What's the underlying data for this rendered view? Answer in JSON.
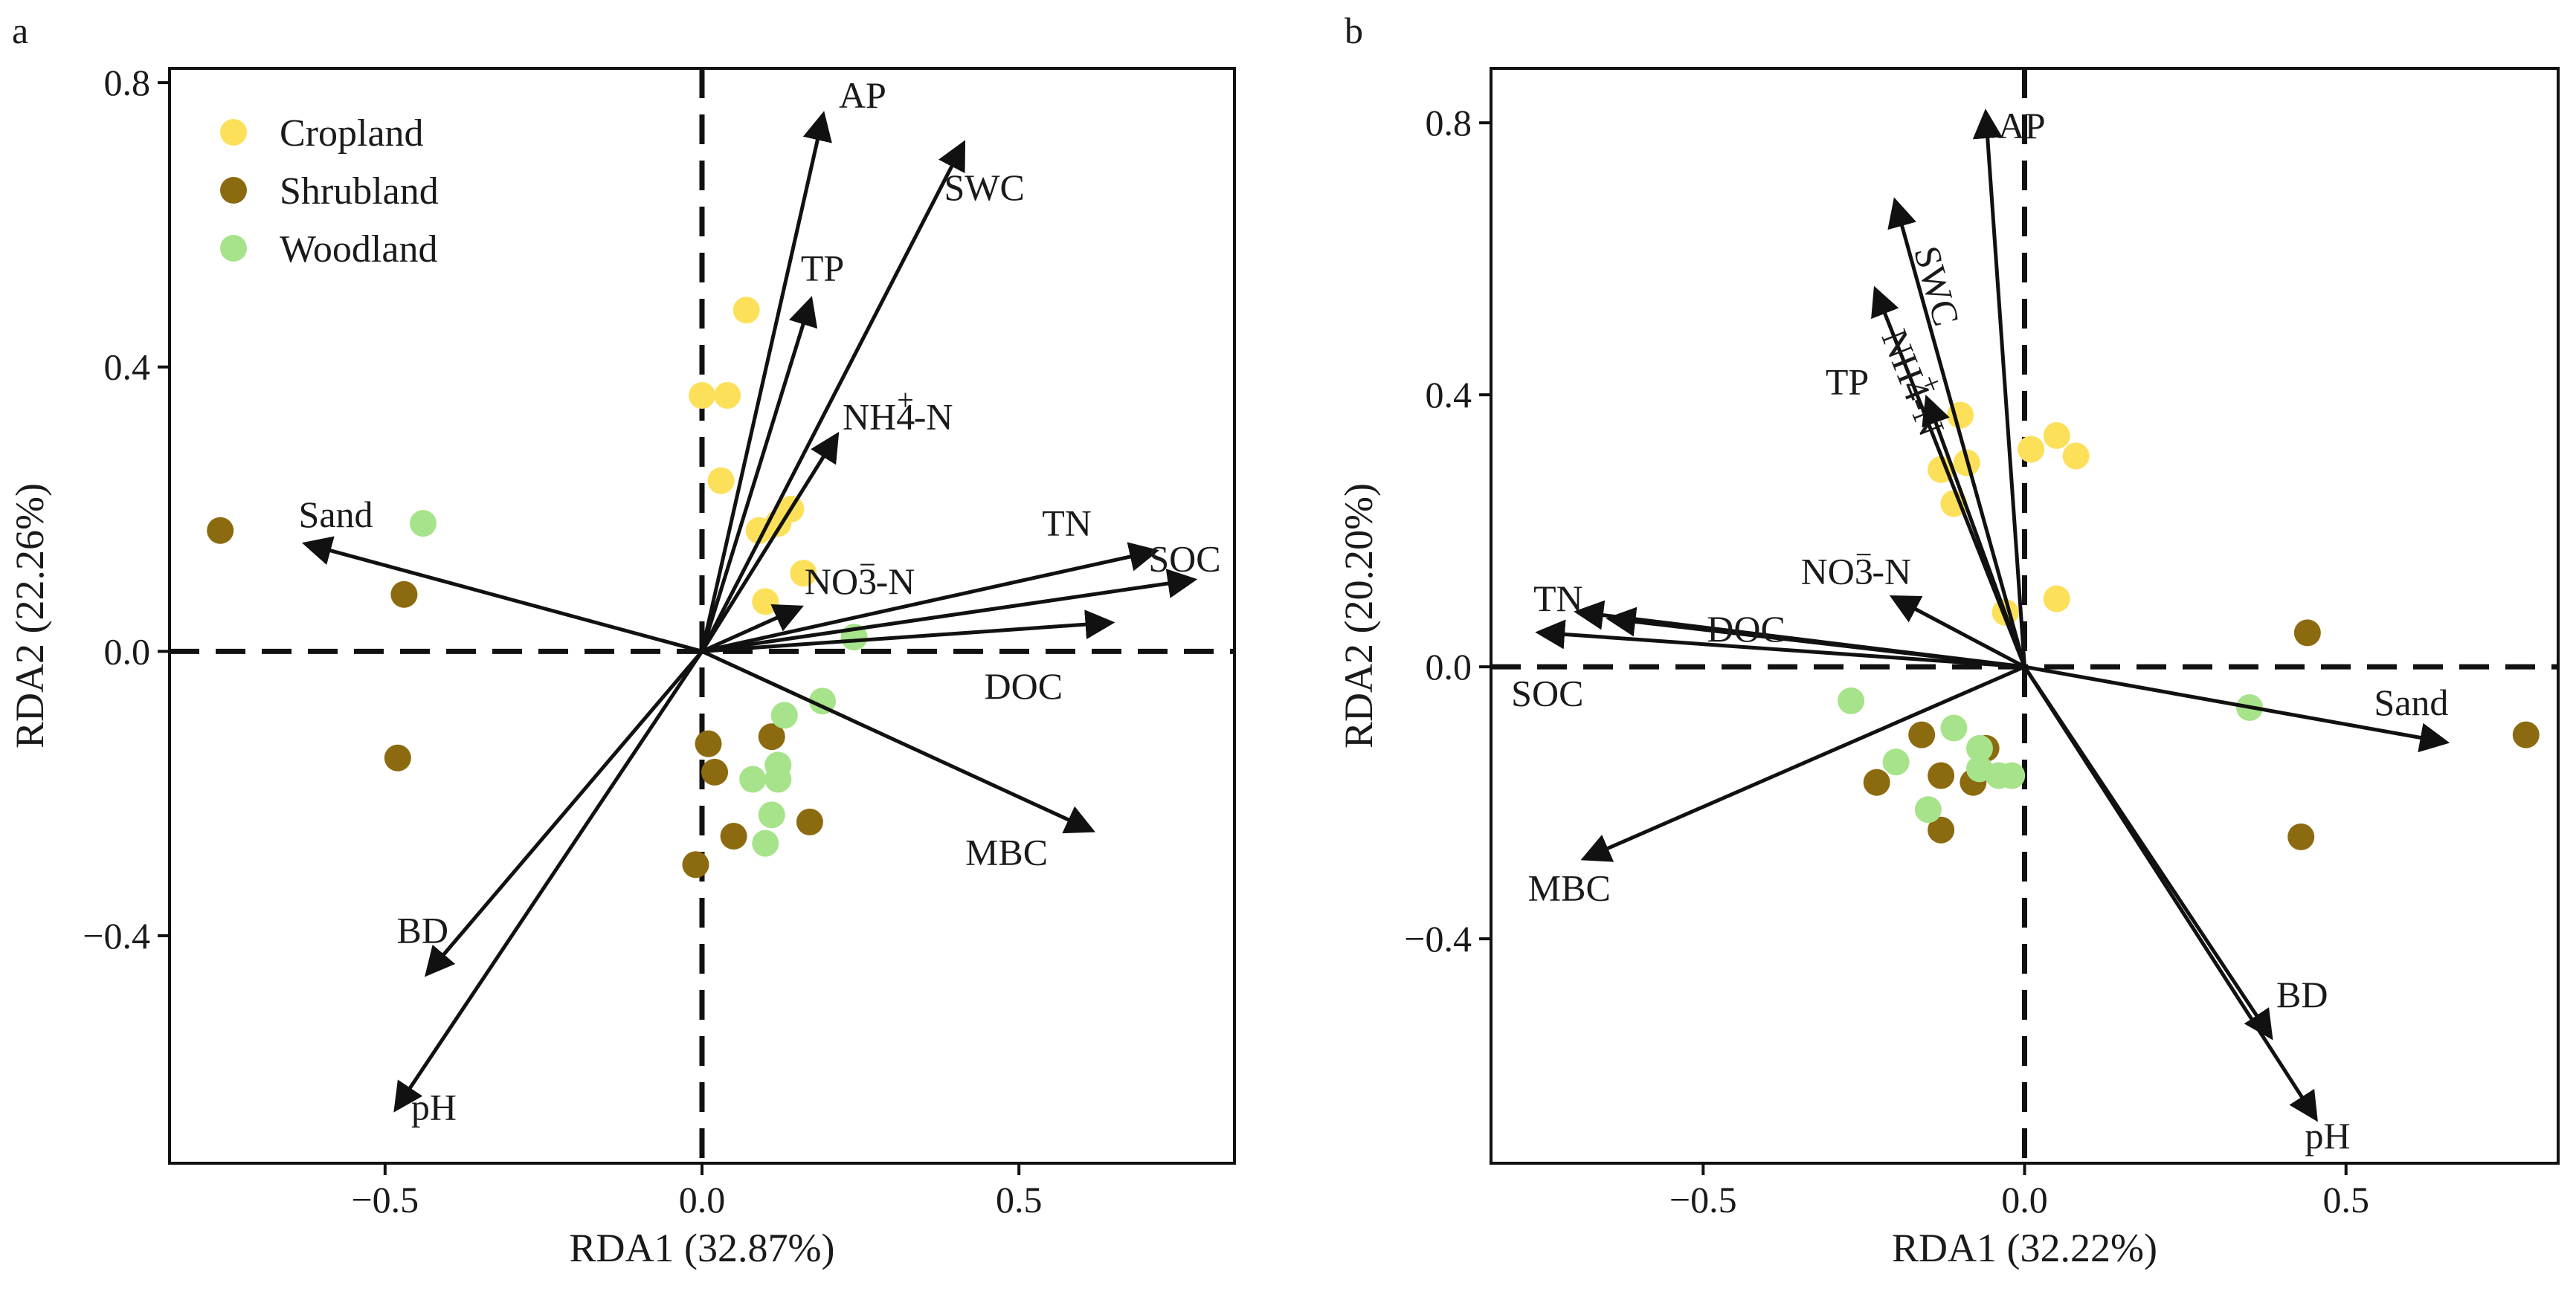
{
  "figure": {
    "legend": [
      {
        "name": "Cropland",
        "color": "#fde05a"
      },
      {
        "name": "Shrubland",
        "color": "#8c6a0f"
      },
      {
        "name": "Woodland",
        "color": "#a6e38a"
      }
    ]
  },
  "chart_data": [
    {
      "type": "scatter",
      "panel_label": "a",
      "xlabel": "RDA1 (32.87%)",
      "ylabel": "RDA2 (22.26%)",
      "xlim": [
        -0.84,
        0.84
      ],
      "ylim": [
        -0.72,
        0.82
      ],
      "xticks": [
        -0.5,
        0.0,
        0.5
      ],
      "xtick_labels": [
        "−0.5",
        "0.0",
        "0.5"
      ],
      "yticks": [
        -0.4,
        0.0,
        0.4,
        0.8
      ],
      "ytick_labels": [
        "−0.4",
        "0.0",
        "0.4",
        "0.8"
      ],
      "legend_position": "top-left",
      "vectors": [
        {
          "name": "AP",
          "x": 0.19,
          "y": 0.75
        },
        {
          "name": "SWC",
          "x": 0.41,
          "y": 0.71
        },
        {
          "name": "TP",
          "x": 0.17,
          "y": 0.49
        },
        {
          "name": "NH4+-N",
          "x": 0.21,
          "y": 0.3
        },
        {
          "name": "NO3−-N",
          "x": 0.15,
          "y": 0.06
        },
        {
          "name": "TN",
          "x": 0.71,
          "y": 0.14
        },
        {
          "name": "SOC",
          "x": 0.77,
          "y": 0.1
        },
        {
          "name": "DOC",
          "x": 0.64,
          "y": 0.04
        },
        {
          "name": "MBC",
          "x": 0.61,
          "y": -0.25
        },
        {
          "name": "Sand",
          "x": -0.62,
          "y": 0.15
        },
        {
          "name": "BD",
          "x": -0.43,
          "y": -0.45
        },
        {
          "name": "pH",
          "x": -0.48,
          "y": -0.64
        }
      ],
      "series": [
        {
          "name": "Cropland",
          "points": [
            [
              0.07,
              0.48
            ],
            [
              0.0,
              0.36
            ],
            [
              0.04,
              0.36
            ],
            [
              0.03,
              0.24
            ],
            [
              0.14,
              0.2
            ],
            [
              0.09,
              0.17
            ],
            [
              0.12,
              0.18
            ],
            [
              0.16,
              0.11
            ],
            [
              0.1,
              0.07
            ]
          ]
        },
        {
          "name": "Shrubland",
          "points": [
            [
              -0.76,
              0.17
            ],
            [
              -0.47,
              0.08
            ],
            [
              -0.48,
              -0.15
            ],
            [
              0.01,
              -0.13
            ],
            [
              0.02,
              -0.17
            ],
            [
              0.11,
              -0.12
            ],
            [
              0.05,
              -0.26
            ],
            [
              0.17,
              -0.24
            ],
            [
              -0.01,
              -0.3
            ]
          ]
        },
        {
          "name": "Woodland",
          "points": [
            [
              -0.44,
              0.18
            ],
            [
              0.24,
              0.02
            ],
            [
              0.19,
              -0.07
            ],
            [
              0.13,
              -0.09
            ],
            [
              0.08,
              -0.18
            ],
            [
              0.12,
              -0.18
            ],
            [
              0.12,
              -0.16
            ],
            [
              0.11,
              -0.23
            ],
            [
              0.1,
              -0.27
            ]
          ]
        }
      ]
    },
    {
      "type": "scatter",
      "panel_label": "b",
      "xlabel": "RDA1 (32.22%)",
      "ylabel": "RDA2 (20.20%)",
      "xlim": [
        -0.83,
        0.83
      ],
      "ylim": [
        -0.73,
        0.88
      ],
      "xticks": [
        -0.5,
        0.0,
        0.5
      ],
      "xtick_labels": [
        "−0.5",
        "0.0",
        "0.5"
      ],
      "yticks": [
        -0.4,
        0.0,
        0.4,
        0.8
      ],
      "ytick_labels": [
        "−0.4",
        "0.0",
        "0.4",
        "0.8"
      ],
      "vectors": [
        {
          "name": "AP",
          "x": -0.06,
          "y": 0.81
        },
        {
          "name": "SWC",
          "x": -0.2,
          "y": 0.68
        },
        {
          "name": "NH4+-N",
          "x": -0.23,
          "y": 0.55
        },
        {
          "name": "TP",
          "x": -0.15,
          "y": 0.39
        },
        {
          "name": "NO3−-N",
          "x": -0.2,
          "y": 0.1
        },
        {
          "name": "TN",
          "x": -0.69,
          "y": 0.08
        },
        {
          "name": "DOC",
          "x": -0.64,
          "y": 0.07
        },
        {
          "name": "SOC",
          "x": -0.75,
          "y": 0.05
        },
        {
          "name": "MBC",
          "x": -0.68,
          "y": -0.28
        },
        {
          "name": "Sand",
          "x": 0.65,
          "y": -0.11
        },
        {
          "name": "BD",
          "x": 0.38,
          "y": -0.54
        },
        {
          "name": "pH",
          "x": 0.45,
          "y": -0.66
        }
      ],
      "series": [
        {
          "name": "Cropland",
          "points": [
            [
              0.05,
              0.34
            ],
            [
              0.08,
              0.31
            ],
            [
              0.01,
              0.32
            ],
            [
              -0.1,
              0.37
            ],
            [
              -0.13,
              0.29
            ],
            [
              -0.09,
              0.3
            ],
            [
              -0.11,
              0.24
            ],
            [
              -0.03,
              0.08
            ],
            [
              0.05,
              0.1
            ]
          ]
        },
        {
          "name": "Shrubland",
          "points": [
            [
              0.44,
              0.05
            ],
            [
              0.78,
              -0.1
            ],
            [
              0.43,
              -0.25
            ],
            [
              -0.16,
              -0.1
            ],
            [
              -0.06,
              -0.12
            ],
            [
              -0.13,
              -0.16
            ],
            [
              -0.08,
              -0.17
            ],
            [
              -0.23,
              -0.17
            ],
            [
              -0.13,
              -0.24
            ]
          ]
        },
        {
          "name": "Woodland",
          "points": [
            [
              -0.27,
              -0.05
            ],
            [
              0.35,
              -0.06
            ],
            [
              -0.11,
              -0.09
            ],
            [
              -0.07,
              -0.12
            ],
            [
              -0.2,
              -0.14
            ],
            [
              -0.07,
              -0.15
            ],
            [
              -0.04,
              -0.16
            ],
            [
              -0.02,
              -0.16
            ],
            [
              -0.15,
              -0.21
            ]
          ]
        }
      ]
    }
  ]
}
